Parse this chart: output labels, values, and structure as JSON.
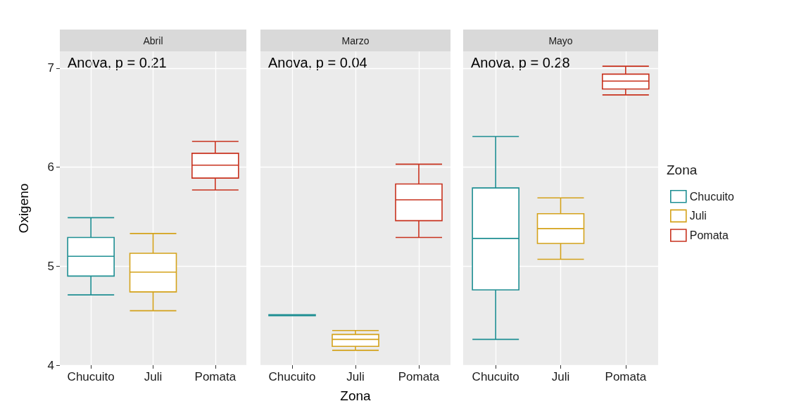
{
  "chart_data": [
    {
      "type": "box",
      "title": "Abril",
      "ylabel": "Oxigeno",
      "categories": [
        "Chucuito",
        "Juli",
        "Pomata"
      ],
      "ylim": [
        4,
        7.17
      ],
      "yticks": [
        4,
        5,
        6,
        7
      ],
      "grid": true,
      "legend": false,
      "annotations": [
        "Anova, p = 0.21"
      ],
      "series": [
        {
          "color": "#1f8f93",
          "boxes": [
            {
              "low": 4.71,
              "q1": 4.9,
              "median": 5.1,
              "q3": 5.29,
              "high": 5.49
            },
            null,
            null
          ]
        },
        {
          "color": "#d4a21a",
          "boxes": [
            null,
            {
              "low": 4.55,
              "q1": 4.74,
              "median": 4.94,
              "q3": 5.13,
              "high": 5.33
            },
            null
          ]
        },
        {
          "color": "#c8321e",
          "boxes": [
            null,
            null,
            {
              "low": 5.77,
              "q1": 5.89,
              "median": 6.02,
              "q3": 6.14,
              "high": 6.26
            }
          ]
        }
      ]
    },
    {
      "type": "box",
      "title": "Marzo",
      "xlabel": "Zona",
      "categories": [
        "Chucuito",
        "Juli",
        "Pomata"
      ],
      "ylim": [
        4,
        7.17
      ],
      "yticks": [
        4,
        5,
        6,
        7
      ],
      "grid": true,
      "legend": false,
      "tick_labels": "x",
      "annotations": [
        "Anova, p = 0.04"
      ],
      "series": [
        {
          "color": "#1f8f93",
          "boxes": [
            {
              "low": 4.5,
              "q1": 4.5,
              "median": 4.51,
              "q3": 4.51,
              "high": 4.51
            },
            null,
            null
          ]
        },
        {
          "color": "#d4a21a",
          "boxes": [
            null,
            {
              "low": 4.15,
              "q1": 4.19,
              "median": 4.26,
              "q3": 4.31,
              "high": 4.35
            },
            null
          ]
        },
        {
          "color": "#c8321e",
          "boxes": [
            null,
            null,
            {
              "low": 5.29,
              "q1": 5.46,
              "median": 5.67,
              "q3": 5.83,
              "high": 6.03
            }
          ]
        }
      ]
    },
    {
      "type": "box",
      "title": "Mayo",
      "categories": [
        "Chucuito",
        "Juli",
        "Pomata"
      ],
      "ylim": [
        4,
        7.17
      ],
      "yticks": [
        4,
        5,
        6,
        7
      ],
      "grid": true,
      "legend": "right",
      "legend_title": "Zona",
      "tick_labels": "x",
      "annotations": [
        "Anova, p = 0.28"
      ],
      "series": [
        {
          "name": "Chucuito",
          "color": "#1f8f93",
          "boxes": [
            {
              "low": 4.26,
              "q1": 4.76,
              "median": 5.28,
              "q3": 5.79,
              "high": 6.31
            },
            null,
            null
          ]
        },
        {
          "name": "Juli",
          "color": "#d4a21a",
          "boxes": [
            null,
            {
              "low": 5.07,
              "q1": 5.23,
              "median": 5.38,
              "q3": 5.53,
              "high": 5.69
            },
            null
          ]
        },
        {
          "name": "Pomata",
          "color": "#c8321e",
          "boxes": [
            null,
            null,
            {
              "low": 6.73,
              "q1": 6.79,
              "median": 6.87,
              "q3": 6.94,
              "high": 7.02
            }
          ]
        }
      ]
    }
  ]
}
